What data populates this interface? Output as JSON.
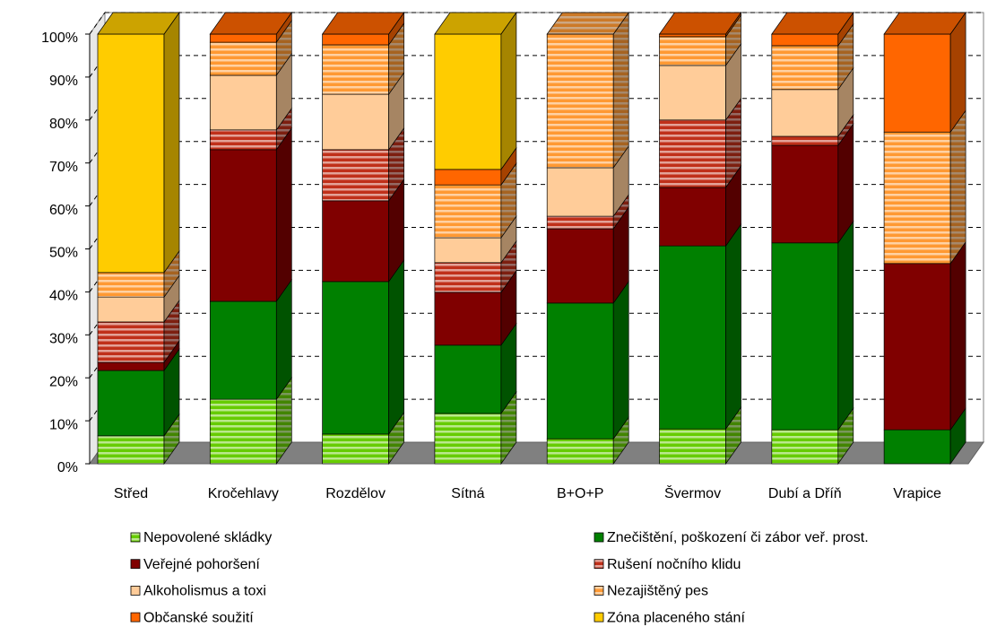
{
  "chart_data": {
    "type": "stacked_bar_3d",
    "categories": [
      "Střed",
      "Kročehlavy",
      "Rozdělov",
      "Sítná",
      "B+O+P",
      "Švermov",
      "Dubí a Dříň",
      "Vrapice"
    ],
    "series": [
      {
        "name": "Nepovolené skládky",
        "color": "#66cc00",
        "hatch": true,
        "values": [
          6.5,
          15.0,
          6.9,
          11.7,
          5.8,
          8.1,
          7.9,
          0
        ]
      },
      {
        "name": "Znečištění, poškození či zábor veř. prost.",
        "color": "#008000",
        "hatch": false,
        "values": [
          15.2,
          22.8,
          35.5,
          15.9,
          31.6,
          42.6,
          43.5,
          7.9
        ]
      },
      {
        "name": "Veřejné pohoršení",
        "color": "#800000",
        "hatch": false,
        "values": [
          1.9,
          35.3,
          18.8,
          12.3,
          17.3,
          13.6,
          22.7,
          38.7
        ]
      },
      {
        "name": "Rušení nočního klidu",
        "color": "#c0301a",
        "hatch": true,
        "values": [
          9.4,
          4.6,
          11.9,
          6.9,
          2.9,
          15.7,
          2.1,
          0
        ]
      },
      {
        "name": "Alkoholismus a toxi",
        "color": "#ffcc99",
        "hatch": false,
        "values": [
          5.8,
          12.7,
          12.9,
          5.8,
          11.3,
          12.7,
          10.9,
          0
        ]
      },
      {
        "name": "Nezajištěný pes",
        "color": "#ff9933",
        "hatch": true,
        "values": [
          5.7,
          7.7,
          11.5,
          12.3,
          31.1,
          6.7,
          10.2,
          30.6
        ]
      },
      {
        "name": "Občanské soužití",
        "color": "#ff6600",
        "hatch": false,
        "values": [
          0,
          1.9,
          2.5,
          3.6,
          0,
          0.6,
          2.7,
          22.8
        ]
      },
      {
        "name": "Zóna placeného stání",
        "color": "#ffcc00",
        "hatch": false,
        "values": [
          55.5,
          0,
          0,
          31.5,
          0,
          0,
          0,
          0
        ]
      }
    ],
    "ylim": [
      0,
      100
    ],
    "yticks": [
      {
        "value": 0,
        "label": "0%"
      },
      {
        "value": 10,
        "label": "10%"
      },
      {
        "value": 20,
        "label": "20%"
      },
      {
        "value": 30,
        "label": "30%"
      },
      {
        "value": 40,
        "label": "40%"
      },
      {
        "value": 50,
        "label": "50%"
      },
      {
        "value": 60,
        "label": "60%"
      },
      {
        "value": 70,
        "label": "70%"
      },
      {
        "value": 80,
        "label": "80%"
      },
      {
        "value": 90,
        "label": "90%"
      },
      {
        "value": 100,
        "label": "100%"
      }
    ],
    "grid": true,
    "legend": "bottom"
  }
}
